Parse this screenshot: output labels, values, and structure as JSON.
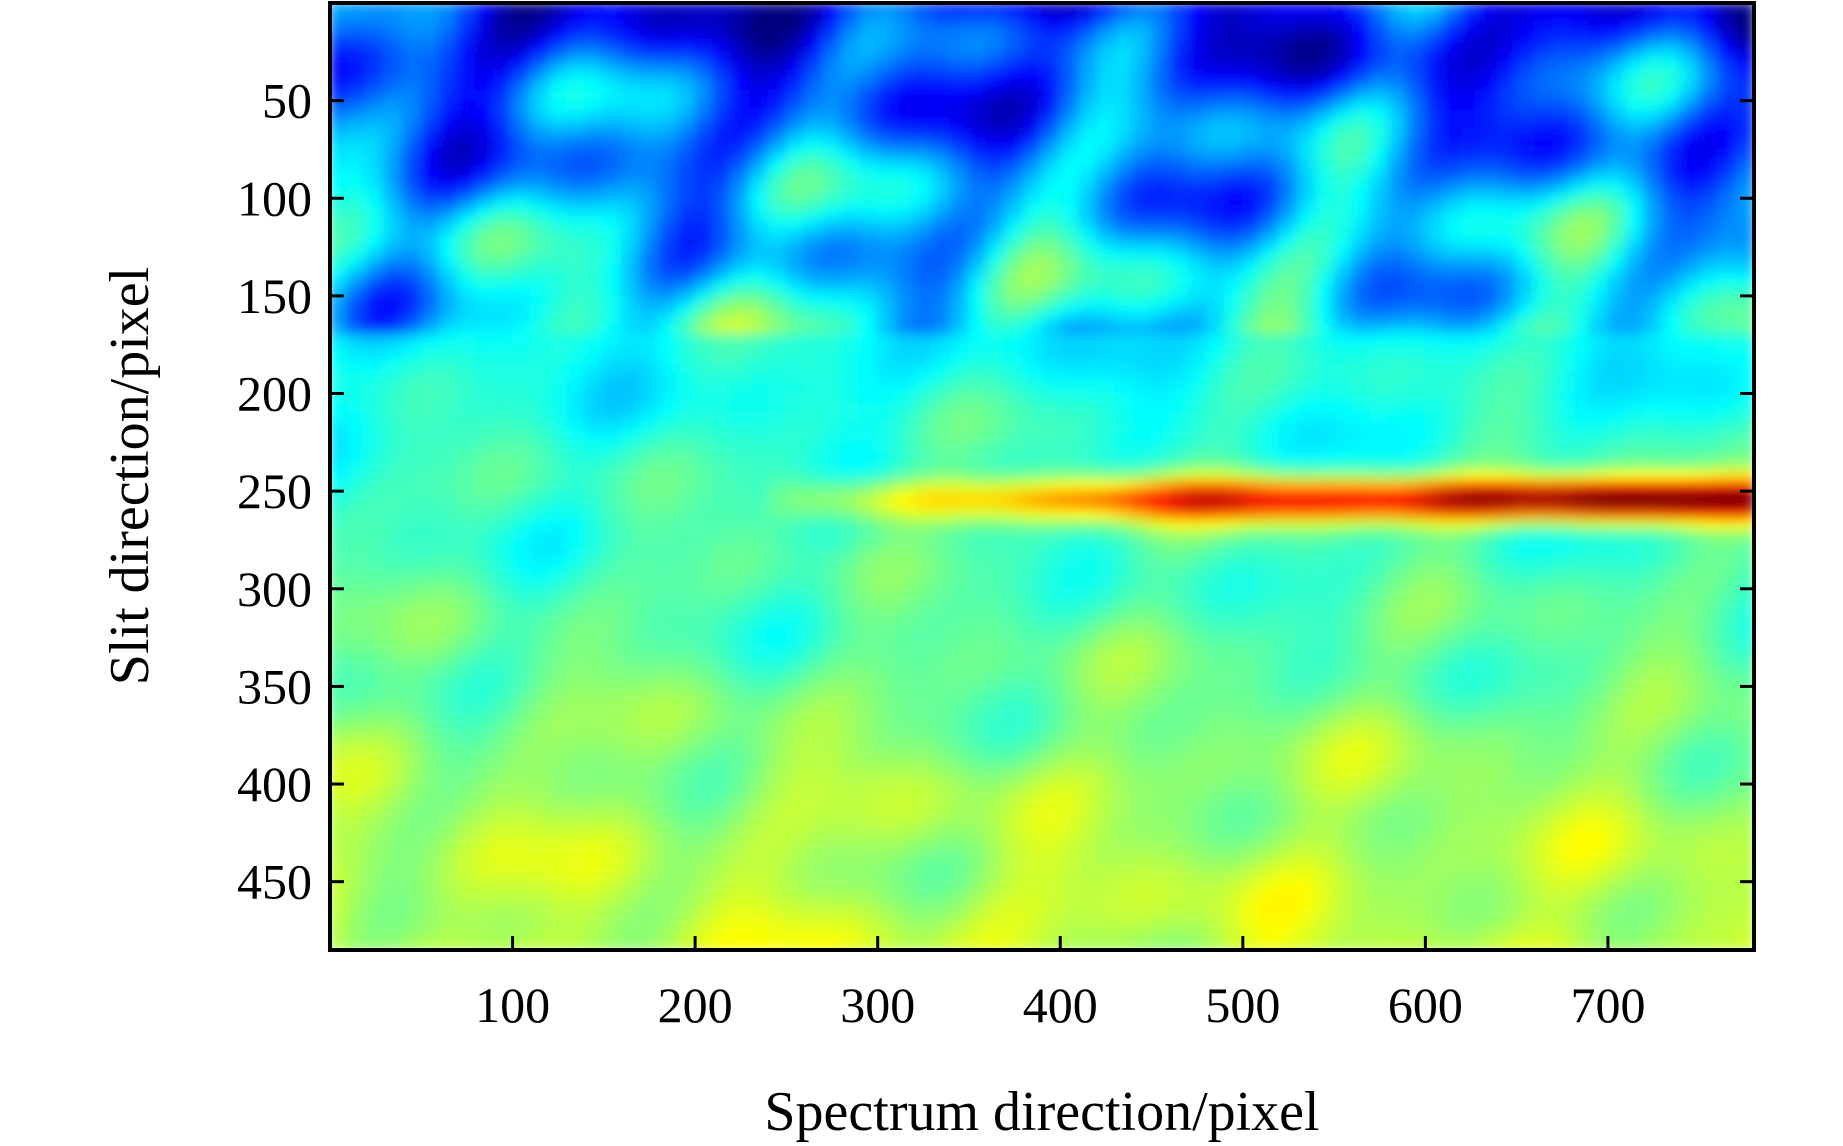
{
  "chart_data": {
    "type": "heatmap",
    "title": "",
    "xlabel": "Spectrum direction/pixel",
    "ylabel": "Slit direction/pixel",
    "x_range": [
      0,
      780
    ],
    "y_range": [
      0,
      485
    ],
    "y_inverted": true,
    "xticks": [
      100,
      200,
      300,
      400,
      500,
      600,
      700
    ],
    "yticks": [
      50,
      100,
      150,
      200,
      250,
      300,
      350,
      400,
      450
    ],
    "colormap": "jet",
    "colorbar_shown": false,
    "colors": {
      "low": "#1e46d2",
      "mid": "#78f0dc",
      "high": "#ff2d14",
      "peak": "#5a0000"
    },
    "features": {
      "description_source": "estimated intensity profile (0=low, 1=high)",
      "bright_band_center_y": 255,
      "bright_band_x_start": 300,
      "bright_band_x_peak": 740,
      "profile_by_y": [
        {
          "y": 0,
          "level": 0.13
        },
        {
          "y": 50,
          "level": 0.22
        },
        {
          "y": 100,
          "level": 0.3
        },
        {
          "y": 150,
          "level": 0.36
        },
        {
          "y": 200,
          "level": 0.4
        },
        {
          "y": 250,
          "level": 0.43
        },
        {
          "y": 300,
          "level": 0.45
        },
        {
          "y": 350,
          "level": 0.48
        },
        {
          "y": 400,
          "level": 0.53
        },
        {
          "y": 450,
          "level": 0.55
        },
        {
          "y": 485,
          "level": 0.57
        }
      ]
    }
  }
}
